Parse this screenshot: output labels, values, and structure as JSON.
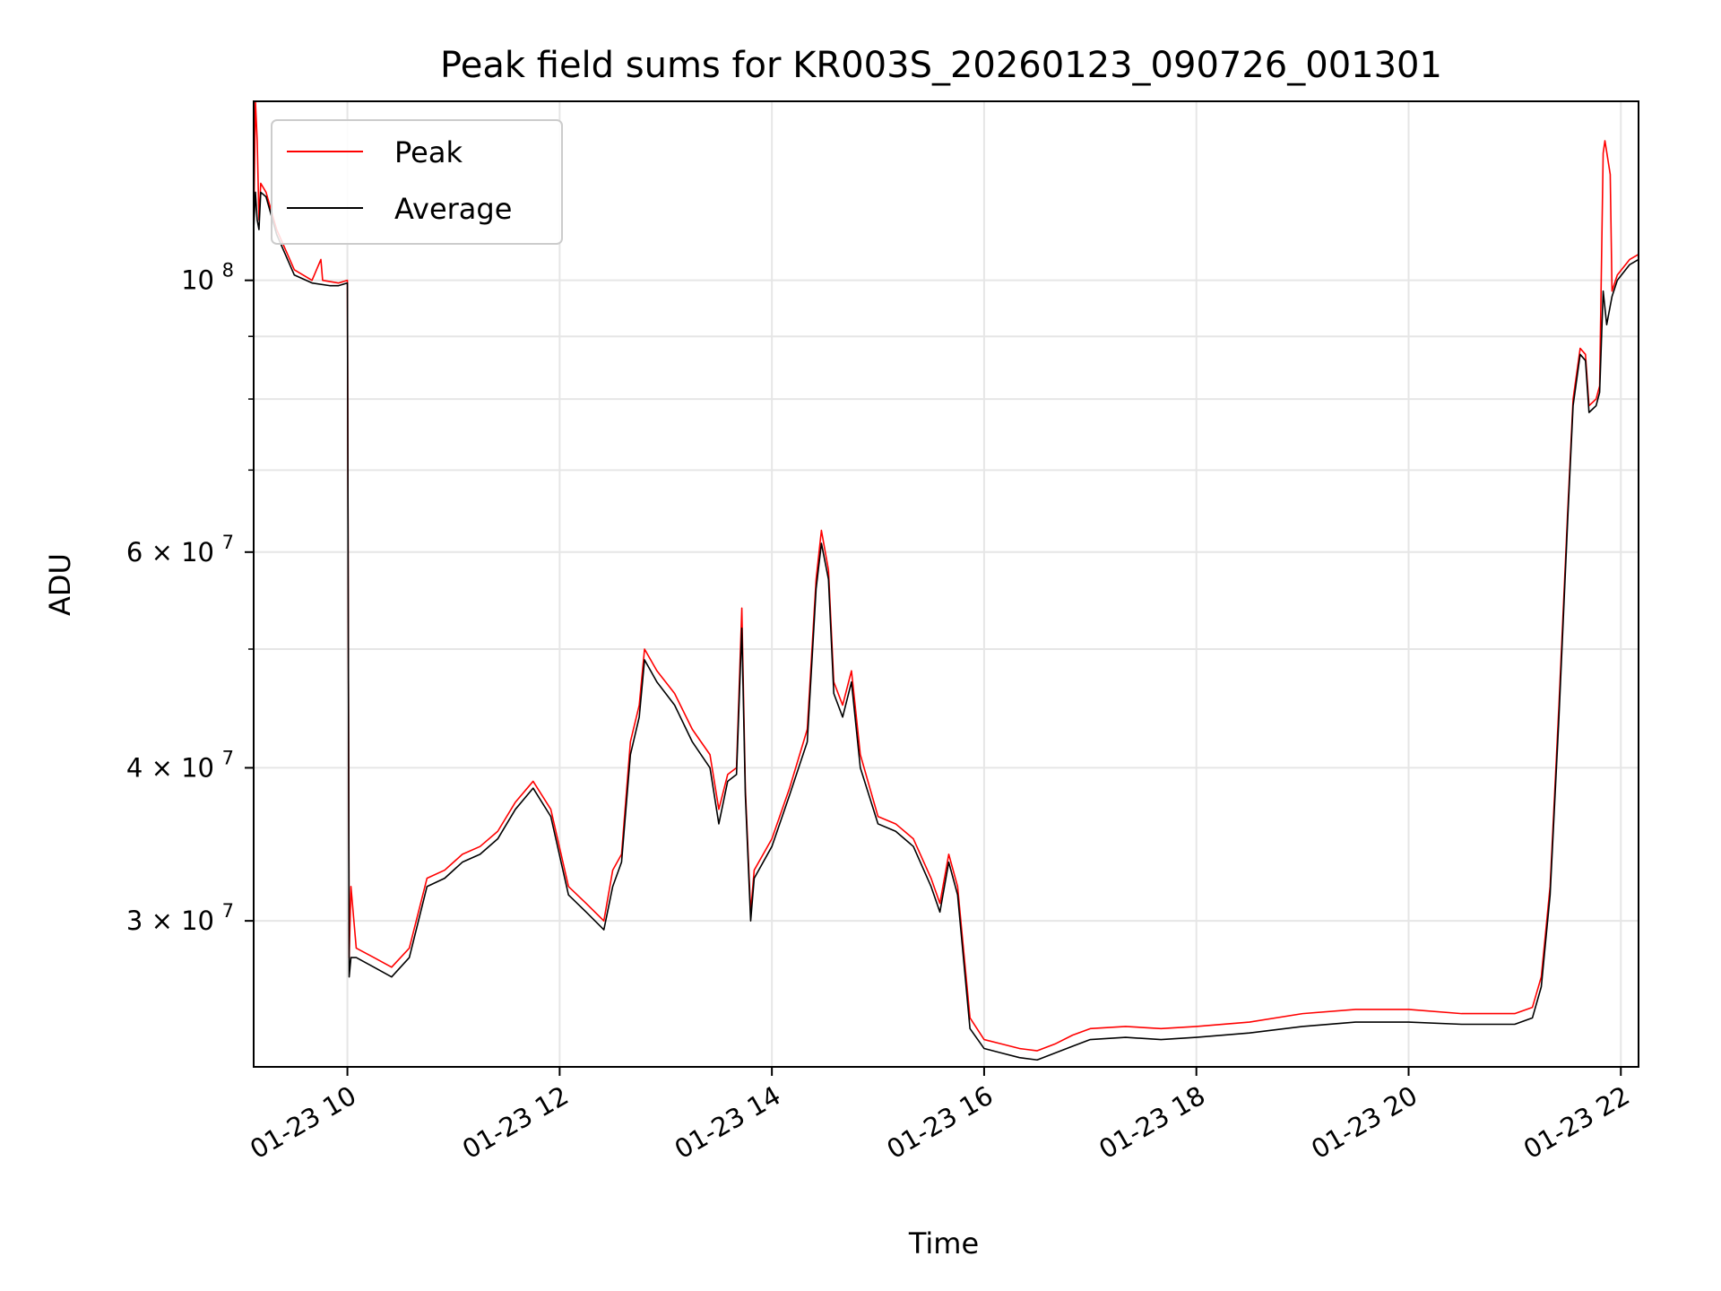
{
  "chart_data": {
    "type": "line",
    "title": "Peak field sums for KR003S_20260123_090726_001301",
    "xlabel": "Time",
    "ylabel": "ADU",
    "y_scale": "log",
    "ylim": [
      22800000,
      140000000
    ],
    "xlim": [
      "01-23 09:07",
      "01-23 22:10"
    ],
    "grid": true,
    "legend": "top-left",
    "x_ticks": [
      {
        "t": "01-23 10:00",
        "label": "01-23 10"
      },
      {
        "t": "01-23 12:00",
        "label": "01-23 12"
      },
      {
        "t": "01-23 14:00",
        "label": "01-23 14"
      },
      {
        "t": "01-23 16:00",
        "label": "01-23 16"
      },
      {
        "t": "01-23 18:00",
        "label": "01-23 18"
      },
      {
        "t": "01-23 20:00",
        "label": "01-23 20"
      },
      {
        "t": "01-23 22:00",
        "label": "01-23 22"
      }
    ],
    "y_ticks_major": [
      {
        "value": 100000000,
        "base": "10",
        "exp": "8",
        "mant": ""
      },
      {
        "value": 60000000,
        "base": "6 × 10",
        "exp": "7",
        "mant": "6"
      },
      {
        "value": 40000000,
        "base": "4 × 10",
        "exp": "7",
        "mant": "4"
      },
      {
        "value": 30000000,
        "base": "3 × 10",
        "exp": "7",
        "mant": "3"
      }
    ],
    "y_ticks_minor": [
      90000000,
      80000000,
      70000000,
      50000000
    ],
    "series": [
      {
        "name": "Peak",
        "color": "#ff0000",
        "points": [
          [
            "01-23 09:07",
            110000000
          ],
          [
            "01-23 09:08",
            140000000
          ],
          [
            "01-23 09:09",
            130000000
          ],
          [
            "01-23 09:10",
            112000000
          ],
          [
            "01-23 09:11",
            120000000
          ],
          [
            "01-23 09:14",
            118000000
          ],
          [
            "01-23 09:20",
            110000000
          ],
          [
            "01-23 09:30",
            102000000
          ],
          [
            "01-23 09:40",
            100000000
          ],
          [
            "01-23 09:45",
            104000000
          ],
          [
            "01-23 09:46",
            100000000
          ],
          [
            "01-23 09:55",
            99500000
          ],
          [
            "01-23 10:00",
            100000000
          ],
          [
            "01-23 10:01",
            28000000
          ],
          [
            "01-23 10:02",
            32000000
          ],
          [
            "01-23 10:05",
            28500000
          ],
          [
            "01-23 10:15",
            28000000
          ],
          [
            "01-23 10:25",
            27500000
          ],
          [
            "01-23 10:35",
            28500000
          ],
          [
            "01-23 10:45",
            32500000
          ],
          [
            "01-23 10:55",
            33000000
          ],
          [
            "01-23 11:05",
            34000000
          ],
          [
            "01-23 11:15",
            34500000
          ],
          [
            "01-23 11:25",
            35500000
          ],
          [
            "01-23 11:35",
            37500000
          ],
          [
            "01-23 11:45",
            39000000
          ],
          [
            "01-23 11:55",
            37000000
          ],
          [
            "01-23 12:05",
            32000000
          ],
          [
            "01-23 12:15",
            31000000
          ],
          [
            "01-23 12:25",
            30000000
          ],
          [
            "01-23 12:30",
            33000000
          ],
          [
            "01-23 12:35",
            34000000
          ],
          [
            "01-23 12:40",
            42000000
          ],
          [
            "01-23 12:45",
            45000000
          ],
          [
            "01-23 12:48",
            50000000
          ],
          [
            "01-23 12:55",
            48000000
          ],
          [
            "01-23 13:05",
            46000000
          ],
          [
            "01-23 13:15",
            43000000
          ],
          [
            "01-23 13:25",
            41000000
          ],
          [
            "01-23 13:30",
            37000000
          ],
          [
            "01-23 13:35",
            39500000
          ],
          [
            "01-23 13:40",
            40000000
          ],
          [
            "01-23 13:43",
            54000000
          ],
          [
            "01-23 13:45",
            38500000
          ],
          [
            "01-23 13:48",
            30500000
          ],
          [
            "01-23 13:50",
            33000000
          ],
          [
            "01-23 14:00",
            35000000
          ],
          [
            "01-23 14:10",
            38500000
          ],
          [
            "01-23 14:20",
            43000000
          ],
          [
            "01-23 14:25",
            57000000
          ],
          [
            "01-23 14:28",
            62500000
          ],
          [
            "01-23 14:32",
            58000000
          ],
          [
            "01-23 14:35",
            47000000
          ],
          [
            "01-23 14:40",
            45000000
          ],
          [
            "01-23 14:45",
            48000000
          ],
          [
            "01-23 14:50",
            41000000
          ],
          [
            "01-23 15:00",
            36500000
          ],
          [
            "01-23 15:10",
            36000000
          ],
          [
            "01-23 15:20",
            35000000
          ],
          [
            "01-23 15:30",
            32500000
          ],
          [
            "01-23 15:35",
            31000000
          ],
          [
            "01-23 15:40",
            34000000
          ],
          [
            "01-23 15:45",
            32000000
          ],
          [
            "01-23 15:52",
            25000000
          ],
          [
            "01-23 16:00",
            24000000
          ],
          [
            "01-23 16:10",
            23800000
          ],
          [
            "01-23 16:20",
            23600000
          ],
          [
            "01-23 16:30",
            23500000
          ],
          [
            "01-23 16:40",
            23800000
          ],
          [
            "01-23 16:50",
            24200000
          ],
          [
            "01-23 17:00",
            24500000
          ],
          [
            "01-23 17:20",
            24600000
          ],
          [
            "01-23 17:40",
            24500000
          ],
          [
            "01-23 18:00",
            24600000
          ],
          [
            "01-23 18:30",
            24800000
          ],
          [
            "01-23 19:00",
            25200000
          ],
          [
            "01-23 19:30",
            25400000
          ],
          [
            "01-23 20:00",
            25400000
          ],
          [
            "01-23 20:30",
            25200000
          ],
          [
            "01-23 21:00",
            25200000
          ],
          [
            "01-23 21:10",
            25500000
          ],
          [
            "01-23 21:15",
            27000000
          ],
          [
            "01-23 21:20",
            32000000
          ],
          [
            "01-23 21:25",
            45000000
          ],
          [
            "01-23 21:30",
            65000000
          ],
          [
            "01-23 21:33",
            80000000
          ],
          [
            "01-23 21:37",
            88000000
          ],
          [
            "01-23 21:40",
            87000000
          ],
          [
            "01-23 21:42",
            79000000
          ],
          [
            "01-23 21:46",
            80000000
          ],
          [
            "01-23 21:48",
            82000000
          ],
          [
            "01-23 21:50",
            127000000
          ],
          [
            "01-23 21:51",
            130000000
          ],
          [
            "01-23 21:54",
            122000000
          ],
          [
            "01-23 21:55",
            98000000
          ],
          [
            "01-23 21:58",
            101000000
          ],
          [
            "01-23 22:05",
            104000000
          ],
          [
            "01-23 22:10",
            105000000
          ]
        ]
      },
      {
        "name": "Average",
        "color": "#000000",
        "points": [
          [
            "01-23 09:07",
            110000000
          ],
          [
            "01-23 09:08",
            118000000
          ],
          [
            "01-23 09:09",
            112000000
          ],
          [
            "01-23 09:10",
            110000000
          ],
          [
            "01-23 09:11",
            118000000
          ],
          [
            "01-23 09:14",
            117000000
          ],
          [
            "01-23 09:20",
            109000000
          ],
          [
            "01-23 09:30",
            101000000
          ],
          [
            "01-23 09:40",
            99500000
          ],
          [
            "01-23 09:50",
            99000000
          ],
          [
            "01-23 09:55",
            99000000
          ],
          [
            "01-23 10:00",
            99500000
          ],
          [
            "01-23 10:01",
            27000000
          ],
          [
            "01-23 10:02",
            28000000
          ],
          [
            "01-23 10:05",
            28000000
          ],
          [
            "01-23 10:15",
            27500000
          ],
          [
            "01-23 10:25",
            27000000
          ],
          [
            "01-23 10:35",
            28000000
          ],
          [
            "01-23 10:45",
            32000000
          ],
          [
            "01-23 10:55",
            32500000
          ],
          [
            "01-23 11:05",
            33500000
          ],
          [
            "01-23 11:15",
            34000000
          ],
          [
            "01-23 11:25",
            35000000
          ],
          [
            "01-23 11:35",
            37000000
          ],
          [
            "01-23 11:45",
            38500000
          ],
          [
            "01-23 11:55",
            36500000
          ],
          [
            "01-23 12:05",
            31500000
          ],
          [
            "01-23 12:15",
            30500000
          ],
          [
            "01-23 12:25",
            29500000
          ],
          [
            "01-23 12:30",
            32000000
          ],
          [
            "01-23 12:35",
            33500000
          ],
          [
            "01-23 12:40",
            41000000
          ],
          [
            "01-23 12:45",
            44000000
          ],
          [
            "01-23 12:48",
            49000000
          ],
          [
            "01-23 12:55",
            47000000
          ],
          [
            "01-23 13:05",
            45000000
          ],
          [
            "01-23 13:15",
            42000000
          ],
          [
            "01-23 13:25",
            40000000
          ],
          [
            "01-23 13:30",
            36000000
          ],
          [
            "01-23 13:35",
            39000000
          ],
          [
            "01-23 13:40",
            39500000
          ],
          [
            "01-23 13:43",
            52000000
          ],
          [
            "01-23 13:45",
            38000000
          ],
          [
            "01-23 13:48",
            30000000
          ],
          [
            "01-23 13:50",
            32500000
          ],
          [
            "01-23 14:00",
            34500000
          ],
          [
            "01-23 14:10",
            38000000
          ],
          [
            "01-23 14:20",
            42000000
          ],
          [
            "01-23 14:25",
            56000000
          ],
          [
            "01-23 14:28",
            61000000
          ],
          [
            "01-23 14:32",
            57000000
          ],
          [
            "01-23 14:35",
            46000000
          ],
          [
            "01-23 14:40",
            44000000
          ],
          [
            "01-23 14:45",
            47000000
          ],
          [
            "01-23 14:50",
            40000000
          ],
          [
            "01-23 15:00",
            36000000
          ],
          [
            "01-23 15:10",
            35500000
          ],
          [
            "01-23 15:20",
            34500000
          ],
          [
            "01-23 15:30",
            32000000
          ],
          [
            "01-23 15:35",
            30500000
          ],
          [
            "01-23 15:40",
            33500000
          ],
          [
            "01-23 15:45",
            31500000
          ],
          [
            "01-23 15:52",
            24500000
          ],
          [
            "01-23 16:00",
            23600000
          ],
          [
            "01-23 16:10",
            23400000
          ],
          [
            "01-23 16:20",
            23200000
          ],
          [
            "01-23 16:30",
            23100000
          ],
          [
            "01-23 16:40",
            23400000
          ],
          [
            "01-23 16:50",
            23700000
          ],
          [
            "01-23 17:00",
            24000000
          ],
          [
            "01-23 17:20",
            24100000
          ],
          [
            "01-23 17:40",
            24000000
          ],
          [
            "01-23 18:00",
            24100000
          ],
          [
            "01-23 18:30",
            24300000
          ],
          [
            "01-23 19:00",
            24600000
          ],
          [
            "01-23 19:30",
            24800000
          ],
          [
            "01-23 20:00",
            24800000
          ],
          [
            "01-23 20:30",
            24700000
          ],
          [
            "01-23 21:00",
            24700000
          ],
          [
            "01-23 21:10",
            25000000
          ],
          [
            "01-23 21:15",
            26500000
          ],
          [
            "01-23 21:20",
            31500000
          ],
          [
            "01-23 21:25",
            44000000
          ],
          [
            "01-23 21:30",
            64000000
          ],
          [
            "01-23 21:33",
            79000000
          ],
          [
            "01-23 21:37",
            87000000
          ],
          [
            "01-23 21:40",
            86000000
          ],
          [
            "01-23 21:42",
            78000000
          ],
          [
            "01-23 21:46",
            79000000
          ],
          [
            "01-23 21:48",
            81000000
          ],
          [
            "01-23 21:50",
            98000000
          ],
          [
            "01-23 21:52",
            92000000
          ],
          [
            "01-23 21:55",
            97000000
          ],
          [
            "01-23 21:58",
            100000000
          ],
          [
            "01-23 22:05",
            103000000
          ],
          [
            "01-23 22:10",
            104000000
          ]
        ]
      }
    ]
  }
}
